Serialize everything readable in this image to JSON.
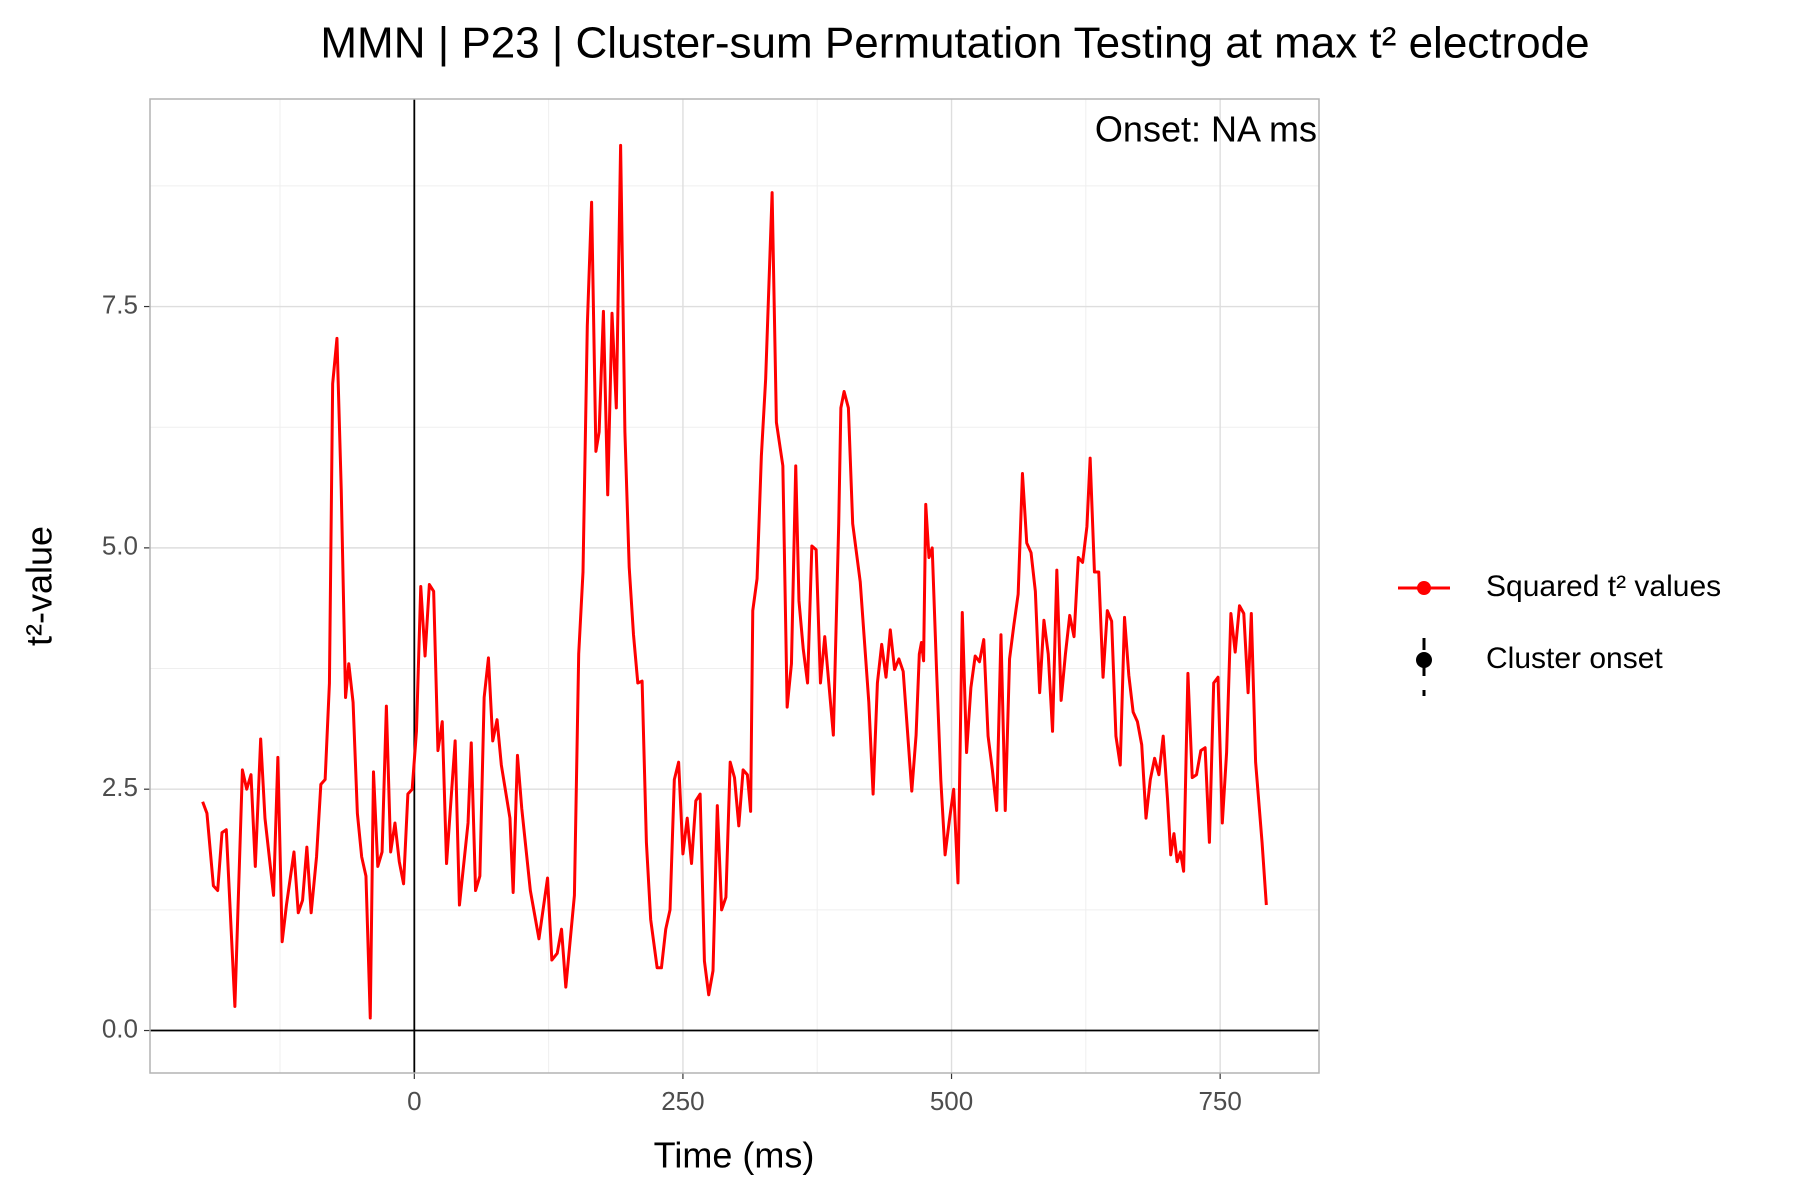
{
  "chart_data": {
    "type": "line",
    "title": "MMN | P23 | Cluster-sum Permutation Testing at max t² electrode",
    "x_label": "Time (ms)",
    "y_label": "t²-value",
    "annotation": "Onset: NA ms",
    "xlim": [
      -246,
      842
    ],
    "ylim": [
      -0.44,
      9.65
    ],
    "xticks": [
      0,
      250,
      500,
      750
    ],
    "yticks": [
      {
        "value": 0,
        "label": "0.0"
      },
      2.5,
      {
        "value": 5,
        "label": "5.0"
      },
      7.5
    ],
    "grid": true,
    "reference_lines": {
      "x": 0,
      "y": 0
    },
    "legend": "right",
    "series": [
      {
        "name": "Squared t² values",
        "color": "#ff0000",
        "x": [
          -197,
          -193,
          -187,
          -183,
          -179,
          -175,
          -167,
          -160,
          -156,
          -152,
          -148,
          -143,
          -139,
          -131,
          -127,
          -123,
          -119,
          -112,
          -108,
          -104,
          -100,
          -96,
          -91,
          -87,
          -83,
          -79,
          -76,
          -72,
          -68,
          -64,
          -61,
          -57,
          -53,
          -49,
          -45,
          -41,
          -38,
          -34,
          -30,
          -26,
          -22,
          -18,
          -14,
          -10,
          -6,
          -2,
          2,
          6,
          10,
          14,
          18,
          22,
          26,
          30,
          38,
          42,
          50,
          53,
          57,
          61,
          65,
          69,
          73,
          77,
          81,
          89,
          92,
          96,
          100,
          108,
          116,
          124,
          128,
          133,
          137,
          141,
          149,
          153,
          157,
          161,
          165,
          169,
          172,
          176,
          180,
          184,
          188,
          192,
          196,
          200,
          204,
          208,
          212,
          216,
          220,
          226,
          230,
          234,
          238,
          242,
          246,
          250,
          254,
          258,
          262,
          266,
          270,
          274,
          278,
          282,
          286,
          290,
          294,
          298,
          302,
          306,
          310,
          313,
          315,
          319,
          323,
          327,
          333,
          337,
          343,
          347,
          351,
          355,
          358,
          362,
          366,
          370,
          374,
          378,
          382,
          390,
          395,
          397,
          400,
          404,
          408,
          415,
          423,
          427,
          431,
          435,
          439,
          443,
          447,
          451,
          455,
          459,
          463,
          467,
          470,
          472,
          474,
          476,
          479,
          482,
          486,
          490,
          494,
          498,
          502,
          506,
          510,
          514,
          518,
          522,
          526,
          530,
          534,
          538,
          542,
          546,
          550,
          554,
          558,
          562,
          566,
          570,
          574,
          578,
          582,
          586,
          590,
          594,
          598,
          602,
          606,
          610,
          614,
          618,
          622,
          626,
          629,
          633,
          637,
          641,
          645,
          649,
          653,
          657,
          661,
          665,
          669,
          673,
          677,
          681,
          685,
          689,
          693,
          697,
          701,
          704,
          707,
          710,
          713,
          716,
          720,
          724,
          728,
          732,
          736,
          740,
          744,
          748,
          752,
          756,
          760,
          764,
          768,
          772,
          776,
          779,
          783,
          789,
          793
        ],
        "values": [
          2.37,
          2.25,
          1.5,
          1.45,
          2.05,
          2.08,
          0.25,
          2.7,
          2.5,
          2.65,
          1.7,
          3.02,
          2.2,
          1.4,
          2.83,
          0.92,
          1.3,
          1.85,
          1.22,
          1.35,
          1.9,
          1.22,
          1.8,
          2.55,
          2.6,
          3.6,
          6.7,
          7.17,
          5.6,
          3.45,
          3.8,
          3.4,
          2.25,
          1.8,
          1.6,
          0.13,
          2.68,
          1.7,
          1.85,
          3.36,
          1.85,
          2.15,
          1.75,
          1.52,
          2.45,
          2.5,
          3.1,
          4.6,
          3.88,
          4.62,
          4.55,
          2.9,
          3.2,
          1.73,
          3.0,
          1.3,
          2.15,
          2.98,
          1.45,
          1.6,
          3.45,
          3.86,
          3.0,
          3.22,
          2.75,
          2.2,
          1.43,
          2.85,
          2.3,
          1.45,
          0.95,
          1.58,
          0.73,
          0.8,
          1.05,
          0.45,
          1.4,
          3.9,
          4.75,
          7.3,
          8.58,
          6.0,
          6.2,
          7.45,
          5.55,
          7.43,
          6.45,
          9.17,
          6.2,
          4.8,
          4.1,
          3.6,
          3.62,
          1.95,
          1.15,
          0.65,
          0.65,
          1.05,
          1.25,
          2.6,
          2.78,
          1.83,
          2.2,
          1.73,
          2.38,
          2.45,
          0.72,
          0.37,
          0.62,
          2.33,
          1.25,
          1.38,
          2.78,
          2.62,
          2.12,
          2.7,
          2.65,
          2.27,
          4.35,
          4.68,
          5.95,
          6.75,
          8.68,
          6.3,
          5.85,
          3.35,
          3.8,
          5.85,
          4.45,
          3.95,
          3.6,
          5.02,
          4.98,
          3.6,
          4.08,
          3.06,
          5.25,
          6.45,
          6.62,
          6.45,
          5.25,
          4.65,
          3.4,
          2.45,
          3.6,
          4.0,
          3.66,
          4.15,
          3.74,
          3.85,
          3.72,
          3.1,
          2.48,
          3.06,
          3.9,
          4.02,
          3.83,
          5.45,
          4.9,
          5.0,
          3.75,
          2.6,
          1.82,
          2.18,
          2.5,
          1.53,
          4.33,
          2.88,
          3.55,
          3.88,
          3.82,
          4.05,
          3.05,
          2.7,
          2.28,
          4.1,
          2.28,
          3.85,
          4.2,
          4.52,
          5.77,
          5.05,
          4.95,
          4.55,
          3.5,
          4.25,
          3.9,
          3.1,
          4.77,
          3.42,
          3.9,
          4.3,
          4.08,
          4.9,
          4.85,
          5.22,
          5.93,
          4.75,
          4.75,
          3.66,
          4.35,
          4.24,
          3.05,
          2.75,
          4.28,
          3.68,
          3.3,
          3.2,
          2.96,
          2.2,
          2.6,
          2.82,
          2.65,
          3.05,
          2.4,
          1.82,
          2.04,
          1.75,
          1.85,
          1.65,
          3.7,
          2.62,
          2.65,
          2.9,
          2.93,
          1.95,
          3.6,
          3.66,
          2.15,
          2.88,
          4.32,
          3.92,
          4.4,
          4.32,
          3.5,
          4.32,
          2.78,
          1.95,
          1.3
        ]
      },
      {
        "name": "Cluster onset",
        "color": "#000000",
        "x": [],
        "values": []
      }
    ]
  }
}
